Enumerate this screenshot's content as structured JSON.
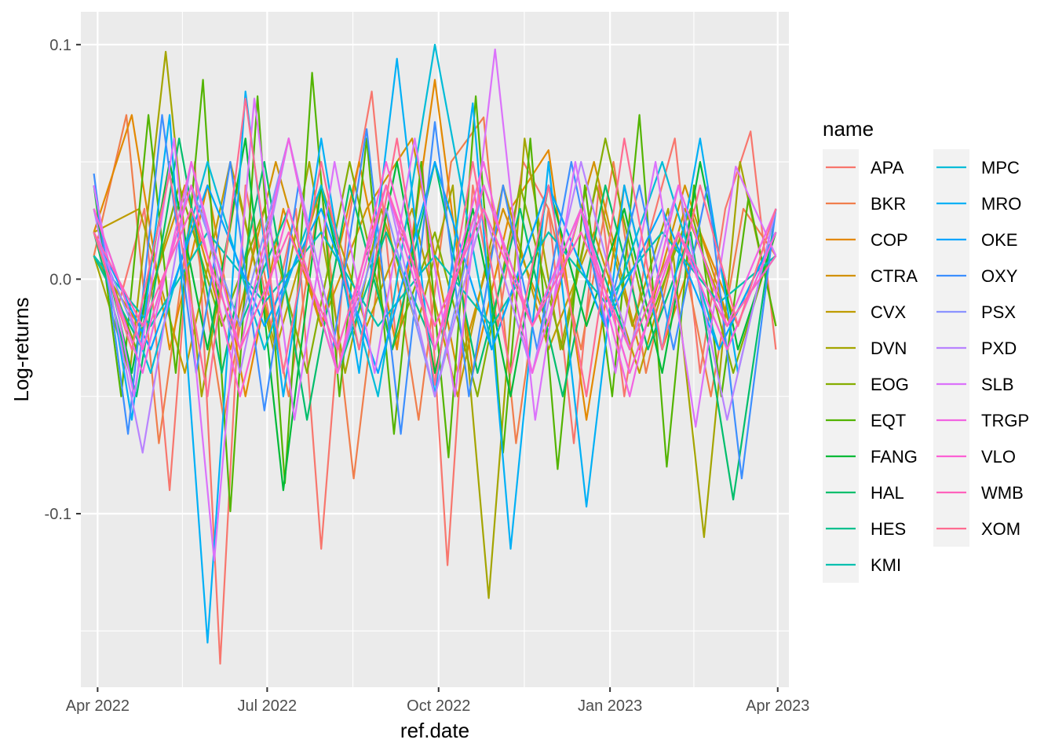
{
  "chart_data": {
    "type": "line",
    "xlabel": "ref.date",
    "ylabel": "Log-returns",
    "x_range": [
      "2022-03-23",
      "2023-04-07"
    ],
    "ylim": [
      -0.174,
      0.114
    ],
    "x_ticks": [
      {
        "date": "2022-04-01",
        "label": "Apr 2022"
      },
      {
        "date": "2022-07-01",
        "label": "Jul 2022"
      },
      {
        "date": "2022-10-01",
        "label": "Oct 2022"
      },
      {
        "date": "2023-01-01",
        "label": "Jan 2023"
      },
      {
        "date": "2023-04-01",
        "label": "Apr 2023"
      }
    ],
    "y_ticks": [
      {
        "value": 0.1,
        "label": "0.1"
      },
      {
        "value": 0.0,
        "label": "0.0"
      },
      {
        "value": -0.1,
        "label": "-0.1"
      }
    ],
    "grid": true,
    "legend_title": "name",
    "legend_position": "right",
    "series": [
      {
        "name": "APA",
        "color": "#F8766D",
        "values": [
          0.02,
          -0.01,
          0.03,
          -0.09,
          0.05,
          -0.164,
          0.04,
          -0.02,
          0.03,
          -0.115,
          0.02,
          0.08,
          -0.03,
          0.05,
          -0.122,
          0.04,
          -0.02,
          0.05,
          0.03,
          -0.07,
          0.04,
          -0.05,
          0.02,
          0.06,
          -0.04,
          0.03,
          0.063,
          -0.03
        ]
      },
      {
        "name": "BKR",
        "color": "#F07E4C",
        "values": [
          0.01,
          0.07,
          -0.07,
          0.03,
          -0.06,
          0.02,
          -0.05,
          0.04,
          -0.085,
          0.03,
          -0.06,
          0.05,
          0.069,
          -0.07,
          0.03,
          -0.03,
          0.05,
          -0.04,
          0.02,
          -0.05,
          0.03,
          0.01
        ]
      },
      {
        "name": "COP",
        "color": "#E38900",
        "values": [
          0.02,
          0.07,
          -0.03,
          0.04,
          -0.05,
          0.03,
          -0.02,
          0.05,
          -0.03,
          0.085,
          -0.04,
          0.03,
          0.055,
          -0.06,
          0.04,
          -0.03,
          0.02,
          -0.02,
          0.03
        ]
      },
      {
        "name": "CTRA",
        "color": "#D29100",
        "values": [
          0.01,
          -0.02,
          0.04,
          -0.03,
          0.05,
          -0.02,
          0.03,
          0.06,
          -0.04,
          0.03,
          -0.02,
          0.05,
          -0.03,
          0.04,
          -0.02,
          0.02
        ]
      },
      {
        "name": "CVX",
        "color": "#BE9C00",
        "values": [
          0.02,
          0.03,
          -0.04,
          0.05,
          -0.03,
          0.04,
          -0.02,
          0.03,
          -0.05,
          0.04,
          -0.03,
          0.02,
          -0.04,
          0.03,
          -0.02,
          0.02
        ]
      },
      {
        "name": "DVN",
        "color": "#A4A500",
        "values": [
          0.01,
          -0.04,
          0.097,
          -0.05,
          0.04,
          -0.03,
          0.05,
          -0.04,
          0.03,
          -0.02,
          0.04,
          -0.136,
          0.06,
          -0.03,
          0.04,
          -0.02,
          0.03,
          -0.11,
          0.05,
          -0.02
        ]
      },
      {
        "name": "EOG",
        "color": "#85AD00",
        "values": [
          0.02,
          -0.03,
          0.04,
          -0.02,
          0.03,
          -0.04,
          0.05,
          -0.03,
          0.02,
          -0.05,
          0.04,
          -0.03,
          0.06,
          -0.02,
          0.03,
          -0.04,
          0.02
        ]
      },
      {
        "name": "EQT",
        "color": "#53B400",
        "values": [
          0.04,
          -0.05,
          0.07,
          -0.04,
          0.085,
          -0.099,
          0.078,
          -0.087,
          0.088,
          -0.05,
          0.06,
          -0.066,
          0.05,
          -0.076,
          0.078,
          -0.074,
          0.06,
          -0.081,
          0.04,
          -0.05,
          0.07,
          -0.08,
          0.04,
          -0.05,
          0.035,
          -0.02
        ]
      },
      {
        "name": "FANG",
        "color": "#00BA38",
        "values": [
          0.03,
          -0.04,
          0.05,
          -0.03,
          0.06,
          -0.09,
          0.04,
          -0.03,
          0.05,
          -0.04,
          0.03,
          -0.05,
          0.04,
          -0.02,
          0.03,
          -0.04,
          0.05,
          -0.03,
          0.02
        ]
      },
      {
        "name": "HAL",
        "color": "#00BE6C",
        "values": [
          0.02,
          -0.05,
          0.06,
          -0.04,
          0.05,
          -0.06,
          0.04,
          -0.03,
          0.05,
          -0.04,
          0.03,
          -0.05,
          0.04,
          -0.03,
          0.02,
          -0.094,
          0.03
        ]
      },
      {
        "name": "HES",
        "color": "#00C08E",
        "values": [
          0.01,
          -0.03,
          0.04,
          -0.02,
          0.03,
          -0.04,
          0.02,
          -0.03,
          0.04,
          -0.02,
          0.03,
          -0.03,
          0.02,
          -0.02,
          0.01
        ]
      },
      {
        "name": "KMI",
        "color": "#00C0AF",
        "values": [
          0.01,
          -0.02,
          0.02,
          -0.01,
          0.02,
          -0.02,
          0.01,
          -0.02,
          0.02,
          -0.01,
          0.02,
          -0.01,
          0.01
        ]
      },
      {
        "name": "MPC",
        "color": "#00BCD8",
        "values": [
          0.03,
          -0.04,
          0.05,
          -0.03,
          0.04,
          -0.05,
          0.1,
          -0.03,
          0.04,
          -0.02,
          0.05,
          -0.03,
          0.02
        ]
      },
      {
        "name": "MRO",
        "color": "#00B0F6",
        "values": [
          0.04,
          -0.06,
          0.07,
          -0.155,
          0.08,
          -0.05,
          0.06,
          -0.04,
          0.094,
          -0.05,
          0.075,
          -0.115,
          0.05,
          -0.097,
          0.04,
          -0.03,
          0.06,
          -0.04,
          0.03
        ]
      },
      {
        "name": "OKE",
        "color": "#00A5FF",
        "values": [
          0.02,
          -0.03,
          0.04,
          -0.02,
          0.03,
          -0.04,
          0.05,
          -0.03,
          0.04,
          -0.02,
          0.03,
          -0.03,
          0.02
        ]
      },
      {
        "name": "OXY",
        "color": "#3D8FFF",
        "values": [
          0.045,
          -0.066,
          0.07,
          -0.04,
          0.05,
          -0.056,
          0.04,
          -0.03,
          0.064,
          -0.066,
          0.067,
          -0.05,
          0.04,
          -0.03,
          0.05,
          -0.02,
          0.04,
          -0.03,
          0.04,
          -0.085,
          0.03
        ]
      },
      {
        "name": "PSX",
        "color": "#8B93FF",
        "values": [
          0.02,
          -0.03,
          0.04,
          -0.02,
          0.06,
          -0.04,
          0.03,
          -0.05,
          0.04,
          -0.02,
          0.03,
          -0.04,
          0.02,
          -0.03,
          0.02
        ]
      },
      {
        "name": "PXD",
        "color": "#B983FF",
        "values": [
          0.03,
          -0.074,
          0.05,
          -0.04,
          0.06,
          -0.03,
          0.04,
          -0.05,
          0.03,
          -0.04,
          0.05,
          -0.03,
          0.04,
          -0.06,
          0.03
        ]
      },
      {
        "name": "SLB",
        "color": "#DB72FB",
        "values": [
          0.04,
          -0.05,
          0.06,
          -0.12,
          0.077,
          -0.06,
          0.05,
          -0.04,
          0.06,
          -0.05,
          0.098,
          -0.06,
          0.05,
          -0.04,
          0.05,
          -0.063,
          0.048,
          0.01
        ]
      },
      {
        "name": "TRGP",
        "color": "#F264E2",
        "values": [
          0.02,
          -0.04,
          0.05,
          -0.03,
          0.06,
          -0.04,
          0.04,
          -0.03,
          0.05,
          -0.04,
          0.03,
          -0.05,
          0.04,
          -0.02,
          0.03
        ]
      },
      {
        "name": "VLO",
        "color": "#FC61D5",
        "values": [
          0.03,
          -0.03,
          0.04,
          -0.05,
          0.03,
          -0.04,
          0.05,
          -0.03,
          0.04,
          -0.02,
          0.03,
          -0.04,
          0.02,
          -0.03,
          0.02
        ]
      },
      {
        "name": "WMB",
        "color": "#FF62BC",
        "values": [
          0.02,
          -0.02,
          0.03,
          -0.03,
          0.02,
          -0.03,
          0.04,
          -0.02,
          0.03,
          -0.02,
          0.02,
          -0.03,
          0.02,
          -0.02,
          0.01
        ]
      },
      {
        "name": "XOM",
        "color": "#FF6C91",
        "values": [
          0.02,
          -0.03,
          0.045,
          -0.05,
          0.077,
          -0.04,
          0.05,
          -0.03,
          0.06,
          -0.045,
          0.05,
          -0.04,
          0.04,
          -0.05,
          0.06,
          -0.03,
          0.04,
          -0.02,
          0.03
        ]
      }
    ]
  }
}
